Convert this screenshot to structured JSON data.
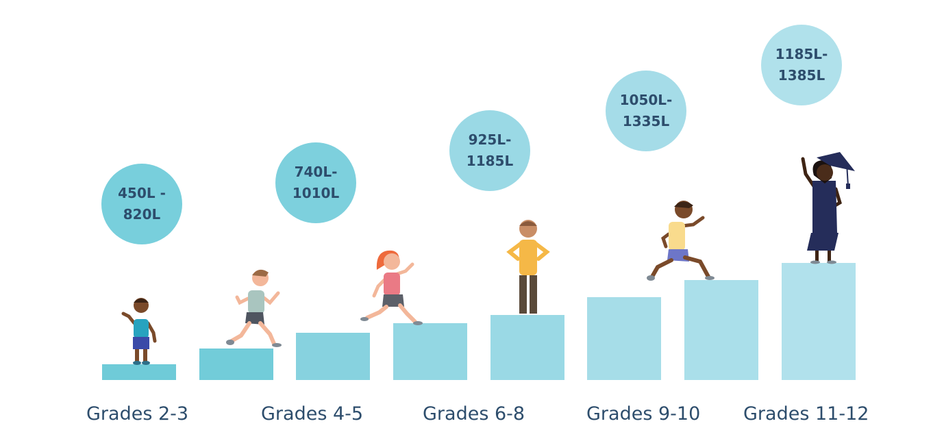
{
  "levels": [
    {
      "grade": "Grades 2-3",
      "lexile": "450L -\n820L"
    },
    {
      "grade": "Grades 4-5",
      "lexile": "740L-\n1010L"
    },
    {
      "grade": "Grades 6-8",
      "lexile": "925L-\n1185L"
    },
    {
      "grade": "Grades 9-10",
      "lexile": "1050L-\n1335L"
    },
    {
      "grade": "Grades 11-12",
      "lexile": "1185L-\n1385L"
    }
  ],
  "colors": {
    "text": "#2d4d6c",
    "steps": [
      "#6fcbd8",
      "#72ccd9",
      "#87d2df",
      "#93d7e3",
      "#9ad9e5",
      "#a6dde8",
      "#aadfea",
      "#b1e1ec"
    ],
    "bubbles": [
      "#78cfdc",
      "#7dd0dd",
      "#9ad9e5",
      "#a5dce8",
      "#b0e1eb"
    ]
  },
  "figures": [
    "standing-boy-icon",
    "running-boy-icon",
    "running-girl-icon",
    "standing-teen-icon",
    "leaping-teen-icon",
    "graduate-icon"
  ]
}
